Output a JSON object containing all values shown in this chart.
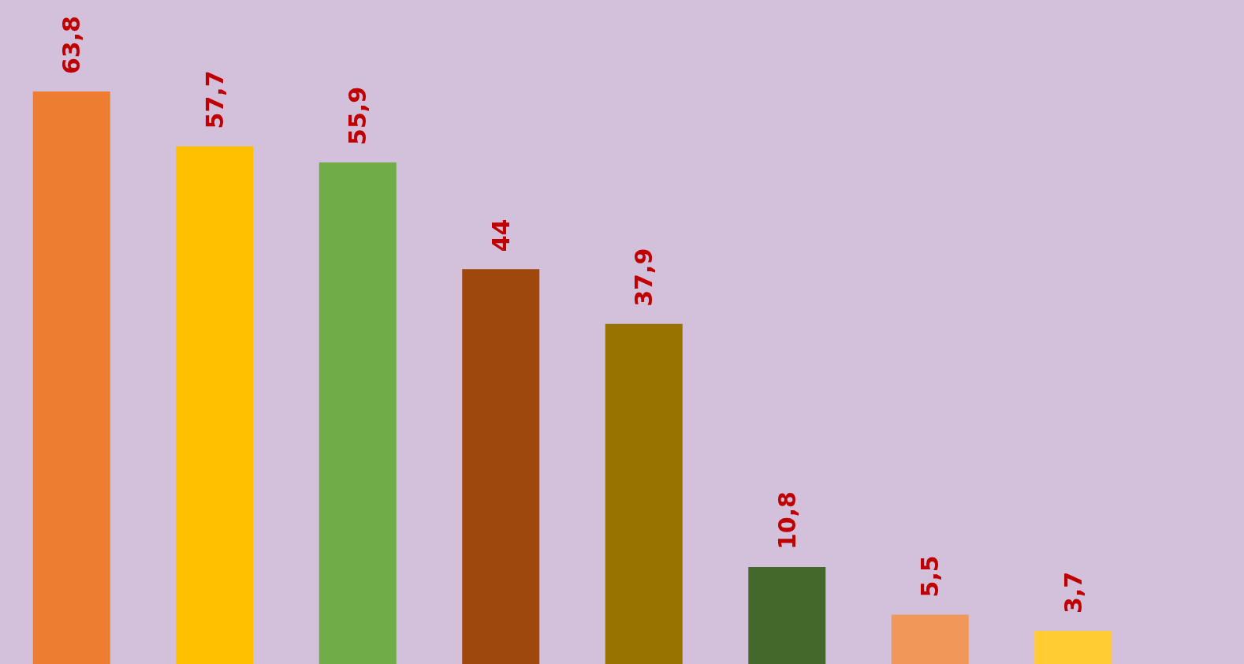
{
  "chart_data": {
    "type": "bar",
    "categories": [
      null,
      null,
      null,
      null,
      null,
      null,
      null,
      null
    ],
    "values": [
      63.8,
      57.7,
      55.9,
      44,
      37.9,
      10.8,
      5.5,
      3.7
    ],
    "colors": [
      "#ed7d31",
      "#ffc000",
      "#70ad47",
      "#9e480e",
      "#997300",
      "#43682b",
      "#f1975a",
      "#ffcd33"
    ],
    "value_labels": [
      "63,8",
      "57,7",
      "55,9",
      "44",
      "37,9",
      "10,8",
      "5,5",
      "3,7"
    ],
    "ylim": [
      0,
      74
    ]
  }
}
